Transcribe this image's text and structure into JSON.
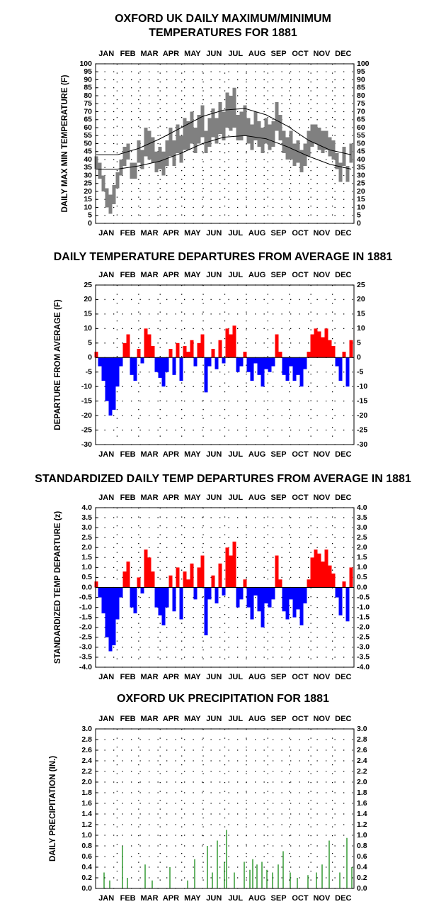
{
  "chart_data": [
    {
      "type": "line",
      "title": [
        "OXFORD UK DAILY MAXIMUM/MINIMUM",
        "TEMPERATURES FOR 1881"
      ],
      "ylabel": "DAILY MAX MIN TEMPERATURE (F)",
      "categories": [
        "JAN",
        "FEB",
        "MAR",
        "APR",
        "MAY",
        "JUN",
        "JUL",
        "AUG",
        "SEP",
        "OCT",
        "NOV",
        "DEC"
      ],
      "xlim": [
        0,
        365
      ],
      "ylim": [
        0,
        100
      ],
      "yticks": [
        0,
        5,
        10,
        15,
        20,
        25,
        30,
        35,
        40,
        45,
        50,
        55,
        60,
        65,
        70,
        75,
        80,
        85,
        90,
        95,
        100
      ],
      "grid": true,
      "x": [
        1,
        6,
        11,
        16,
        21,
        26,
        31,
        36,
        41,
        46,
        51,
        56,
        61,
        66,
        71,
        76,
        81,
        86,
        91,
        96,
        101,
        106,
        111,
        116,
        121,
        126,
        131,
        136,
        141,
        146,
        151,
        156,
        161,
        166,
        171,
        176,
        181,
        186,
        191,
        196,
        201,
        206,
        211,
        216,
        221,
        226,
        231,
        236,
        241,
        246,
        251,
        256,
        261,
        266,
        271,
        276,
        281,
        286,
        291,
        296,
        301,
        306,
        311,
        316,
        321,
        326,
        331,
        336,
        341,
        346,
        351,
        356,
        361
      ],
      "series": [
        {
          "color": "#808080",
          "values": [
            42,
            38,
            30,
            22,
            18,
            24,
            32,
            40,
            48,
            50,
            38,
            38,
            52,
            46,
            60,
            58,
            54,
            45,
            48,
            45,
            52,
            60,
            52,
            62,
            55,
            66,
            64,
            70,
            60,
            68,
            74,
            58,
            66,
            72,
            66,
            76,
            70,
            82,
            80,
            85,
            68,
            70,
            74,
            66,
            62,
            70,
            64,
            60,
            66,
            62,
            64,
            76,
            68,
            58,
            54,
            58,
            50,
            52,
            46,
            50,
            58,
            62,
            62,
            60,
            58,
            58,
            54,
            52,
            44,
            38,
            48,
            36,
            50
          ],
          "low": [
            34,
            28,
            20,
            10,
            6,
            12,
            22,
            30,
            36,
            40,
            28,
            28,
            38,
            34,
            42,
            40,
            38,
            32,
            34,
            30,
            36,
            42,
            36,
            44,
            38,
            46,
            46,
            50,
            44,
            50,
            54,
            44,
            48,
            54,
            50,
            56,
            52,
            60,
            58,
            60,
            52,
            52,
            55,
            50,
            46,
            52,
            48,
            44,
            50,
            46,
            48,
            58,
            52,
            44,
            40,
            40,
            36,
            38,
            32,
            36,
            42,
            48,
            50,
            46,
            44,
            46,
            42,
            40,
            34,
            26,
            36,
            26,
            38
          ]
        },
        {
          "color": "#000000",
          "x": [
            1,
            31,
            61,
            91,
            121,
            151,
            181,
            211,
            241,
            271,
            301,
            331,
            361
          ],
          "values": [
            43,
            43,
            47,
            53,
            60,
            67,
            71,
            72,
            68,
            61,
            52,
            46,
            43
          ]
        },
        {
          "color": "#000000",
          "x": [
            1,
            31,
            61,
            91,
            121,
            151,
            181,
            211,
            241,
            271,
            301,
            331,
            361
          ],
          "values": [
            34,
            34,
            36,
            39,
            44,
            50,
            54,
            55,
            53,
            48,
            42,
            37,
            34
          ]
        }
      ]
    },
    {
      "type": "bar",
      "title": "DAILY TEMPERATURE DEPARTURES FROM AVERAGE IN 1881",
      "ylabel": "DEPARTURE FROM AVERAGE (F)",
      "categories": [
        "JAN",
        "FEB",
        "MAR",
        "APR",
        "MAY",
        "JUN",
        "JUL",
        "AUG",
        "SEP",
        "OCT",
        "NOV",
        "DEC"
      ],
      "xlim": [
        0,
        365
      ],
      "ylim": [
        -30,
        25
      ],
      "yticks": [
        -30,
        -25,
        -20,
        -15,
        -10,
        -5,
        0,
        5,
        10,
        15,
        20,
        25
      ],
      "grid": true,
      "colors": {
        "positive": "#ff0000",
        "negative": "#0000ff"
      },
      "bar_days": 5,
      "x": [
        1,
        6,
        11,
        16,
        21,
        26,
        31,
        36,
        41,
        46,
        51,
        56,
        61,
        66,
        71,
        76,
        81,
        86,
        91,
        96,
        101,
        106,
        111,
        116,
        121,
        126,
        131,
        136,
        141,
        146,
        151,
        156,
        161,
        166,
        171,
        176,
        181,
        186,
        191,
        196,
        201,
        206,
        211,
        216,
        221,
        226,
        231,
        236,
        241,
        246,
        251,
        256,
        261,
        266,
        271,
        276,
        281,
        286,
        291,
        296,
        301,
        306,
        311,
        316,
        321,
        326,
        331,
        336,
        341,
        346,
        351,
        356,
        361
      ],
      "values": [
        2,
        -3,
        -8,
        -15,
        -20,
        -18,
        -10,
        -3,
        5,
        8,
        -6,
        -8,
        3,
        -2,
        10,
        8,
        4,
        -5,
        -7,
        -10,
        -5,
        3,
        -6,
        5,
        -8,
        4,
        2,
        6,
        -3,
        5,
        8,
        -12,
        -3,
        3,
        -4,
        6,
        -2,
        10,
        8,
        11,
        -5,
        -3,
        2,
        -5,
        -8,
        -2,
        -6,
        -10,
        -4,
        -5,
        -3,
        8,
        2,
        -6,
        -8,
        -3,
        -8,
        -6,
        -10,
        -4,
        2,
        8,
        10,
        9,
        7,
        10,
        6,
        4,
        -3,
        -8,
        2,
        -10,
        6
      ]
    },
    {
      "type": "bar",
      "title": "STANDARDIZED DAILY TEMP DEPARTURES FROM AVERAGE IN 1881",
      "ylabel": "STANDARDIZED TEMP DEPARTURE (z)",
      "categories": [
        "JAN",
        "FEB",
        "MAR",
        "APR",
        "MAY",
        "JUN",
        "JUL",
        "AUG",
        "SEP",
        "OCT",
        "NOV",
        "DEC"
      ],
      "xlim": [
        0,
        365
      ],
      "ylim": [
        -4,
        4
      ],
      "yticks": [
        {
          "value": -4,
          "label": "-4.0"
        },
        -3.5,
        {
          "value": -3,
          "label": "-3.0"
        },
        -2.5,
        {
          "value": -2,
          "label": "-2.0"
        },
        -1.5,
        {
          "value": -1,
          "label": "-1.0"
        },
        -0.5,
        {
          "value": 0,
          "label": "0.0"
        },
        0.5,
        {
          "value": 1,
          "label": "1.0"
        },
        1.5,
        {
          "value": 2,
          "label": "2.0"
        },
        2.5,
        {
          "value": 3,
          "label": "3.0"
        },
        3.5,
        {
          "value": 4,
          "label": "4.0"
        }
      ],
      "grid": true,
      "colors": {
        "positive": "#ff0000",
        "negative": "#0000ff"
      },
      "bar_days": 5,
      "x": [
        1,
        6,
        11,
        16,
        21,
        26,
        31,
        36,
        41,
        46,
        51,
        56,
        61,
        66,
        71,
        76,
        81,
        86,
        91,
        96,
        101,
        106,
        111,
        116,
        121,
        126,
        131,
        136,
        141,
        146,
        151,
        156,
        161,
        166,
        171,
        176,
        181,
        186,
        191,
        196,
        201,
        206,
        211,
        216,
        221,
        226,
        231,
        236,
        241,
        246,
        251,
        256,
        261,
        266,
        271,
        276,
        281,
        286,
        291,
        296,
        301,
        306,
        311,
        316,
        321,
        326,
        331,
        336,
        341,
        346,
        351,
        356,
        361
      ],
      "values": [
        0.3,
        -0.5,
        -1.3,
        -2.5,
        -3.2,
        -2.9,
        -1.6,
        -0.5,
        0.8,
        1.3,
        -1.0,
        -1.3,
        0.5,
        -0.3,
        1.9,
        1.5,
        0.8,
        -1.0,
        -1.4,
        -1.9,
        -1.0,
        0.6,
        -1.2,
        1.0,
        -1.6,
        0.8,
        0.4,
        1.2,
        -0.6,
        1.0,
        1.6,
        -2.4,
        -0.6,
        0.6,
        -0.8,
        1.2,
        -0.4,
        2.0,
        1.6,
        2.3,
        -1.0,
        -0.6,
        0.4,
        -1.0,
        -1.6,
        -0.4,
        -1.2,
        -2.0,
        -0.8,
        -1.0,
        -0.6,
        1.6,
        0.4,
        -1.2,
        -1.6,
        -0.6,
        -1.5,
        -1.1,
        -1.9,
        -0.8,
        0.4,
        1.5,
        1.9,
        1.7,
        1.3,
        1.9,
        1.1,
        0.7,
        -0.5,
        -1.4,
        0.3,
        -1.7,
        1.0
      ]
    },
    {
      "type": "bar",
      "title": "OXFORD UK PRECIPITATION FOR 1881",
      "ylabel": "DAILY PRECIPITATION (IN.)",
      "categories": [
        "JAN",
        "FEB",
        "MAR",
        "APR",
        "MAY",
        "JUN",
        "JUL",
        "AUG",
        "SEP",
        "OCT",
        "NOV",
        "DEC"
      ],
      "xlim": [
        0,
        365
      ],
      "ylim": [
        0,
        3
      ],
      "yticks": [
        {
          "value": 0,
          "label": "0.0"
        },
        0.2,
        0.4,
        0.6,
        0.8,
        {
          "value": 1,
          "label": "1.0"
        },
        1.2,
        1.4,
        1.6,
        1.8,
        {
          "value": 2,
          "label": "2.0"
        },
        2.2,
        2.4,
        2.6,
        2.8,
        {
          "value": 3,
          "label": "3.0"
        }
      ],
      "grid": true,
      "color": "#008000",
      "bar_days": 1.2,
      "x": [
        12,
        20,
        38,
        45,
        70,
        80,
        105,
        130,
        140,
        158,
        165,
        172,
        182,
        185,
        196,
        210,
        218,
        222,
        228,
        235,
        242,
        250,
        258,
        265,
        275,
        285,
        300,
        312,
        320,
        330,
        345,
        355,
        362
      ],
      "values": [
        0.3,
        0.15,
        0.8,
        0.2,
        0.45,
        0.15,
        0.4,
        0.15,
        0.55,
        0.8,
        0.3,
        0.9,
        0.5,
        1.1,
        0.3,
        0.5,
        0.35,
        0.55,
        0.45,
        0.5,
        0.35,
        0.3,
        0.45,
        0.7,
        0.3,
        0.2,
        0.25,
        0.3,
        0.45,
        0.9,
        0.3,
        0.95,
        0.4
      ]
    }
  ]
}
